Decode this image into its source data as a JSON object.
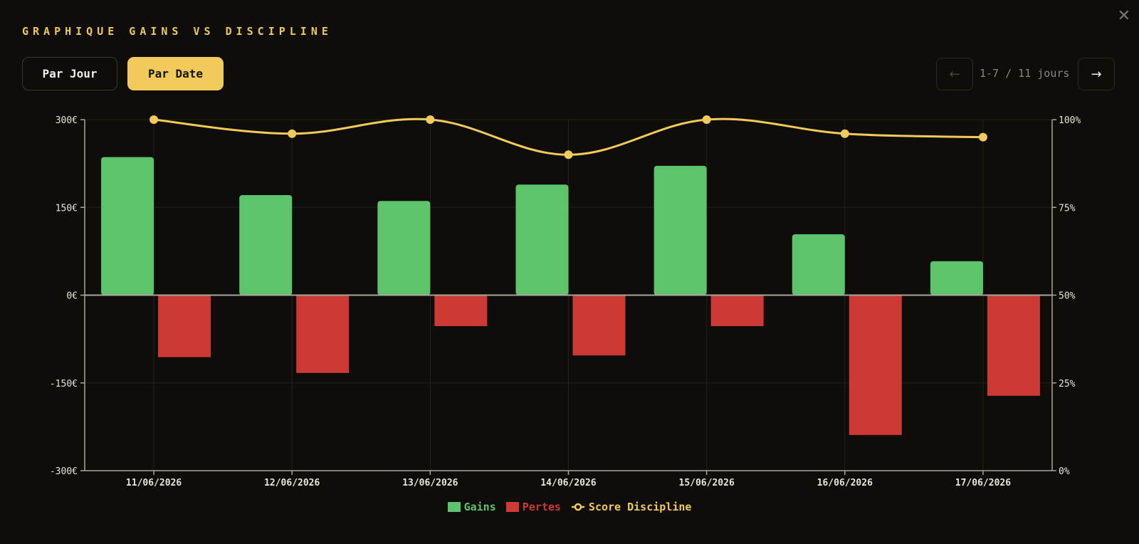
{
  "header": {
    "title": "GRAPHIQUE GAINS VS DISCIPLINE",
    "close_icon": "close-icon"
  },
  "toggle": {
    "par_jour": "Par Jour",
    "par_date": "Par Date",
    "active": "par_date"
  },
  "pager": {
    "prev_label": "←",
    "next_label": "→",
    "range_text": "1-7 / 11 jours"
  },
  "colors": {
    "gains": "#5ec46c",
    "pertes": "#cc3a33",
    "discipline": "#f2c95b",
    "axis": "#a8a59c",
    "grid": "#23221d",
    "tick_text": "#e8e4d8"
  },
  "chart_data": {
    "type": "bar",
    "categories": [
      "11/06/2026",
      "12/06/2026",
      "13/06/2026",
      "14/06/2026",
      "15/06/2026",
      "16/06/2026",
      "17/06/2026"
    ],
    "series": [
      {
        "name": "Gains",
        "type": "bar",
        "axis": "left",
        "values": [
          236,
          171,
          161,
          189,
          221,
          104,
          58
        ]
      },
      {
        "name": "Pertes",
        "type": "bar",
        "axis": "left",
        "values": [
          -106,
          -133,
          -53,
          -103,
          -53,
          -239,
          -172
        ]
      },
      {
        "name": "Score Discipline",
        "type": "line",
        "axis": "right",
        "values": [
          100,
          96,
          100,
          90,
          100,
          96,
          95
        ]
      }
    ],
    "ylim": [
      -300,
      300
    ],
    "y_ticks": [
      300,
      150,
      0,
      -150,
      -300
    ],
    "y_tick_labels": [
      "300€",
      "150€",
      "0€",
      "-150€",
      "-300€"
    ],
    "y2lim": [
      0,
      100
    ],
    "y2_ticks": [
      100,
      75,
      50,
      25,
      0
    ],
    "y2_tick_labels": [
      "100%",
      "75%",
      "50%",
      "25%",
      "0%"
    ],
    "grid": true,
    "legend_position": "bottom-center"
  }
}
